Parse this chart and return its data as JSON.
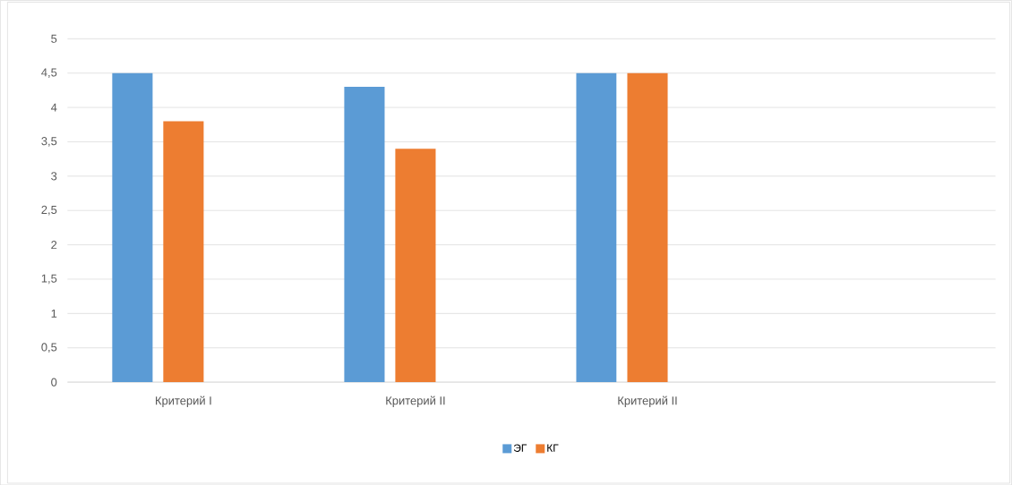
{
  "chart_data": {
    "type": "bar",
    "categories": [
      "Критерий I",
      "Критерий II",
      "Критерий II",
      null
    ],
    "series": [
      {
        "name": "ЭГ",
        "color": "#5b9bd5",
        "values": [
          4.5,
          4.3,
          4.5,
          null
        ]
      },
      {
        "name": "КГ",
        "color": "#ed7d31",
        "values": [
          3.8,
          3.4,
          4.5,
          null
        ]
      }
    ],
    "ylim": [
      0,
      5
    ],
    "yticks": [
      0,
      {
        "value": 0.5,
        "label": "0,5"
      },
      1,
      {
        "value": 1.5,
        "label": "1,5"
      },
      2,
      {
        "value": 2.5,
        "label": "2,5"
      },
      3,
      {
        "value": 3.5,
        "label": "3,5"
      },
      4,
      {
        "value": 4.5,
        "label": "4,5"
      },
      5
    ],
    "grid": "y",
    "legend": "bottom"
  }
}
